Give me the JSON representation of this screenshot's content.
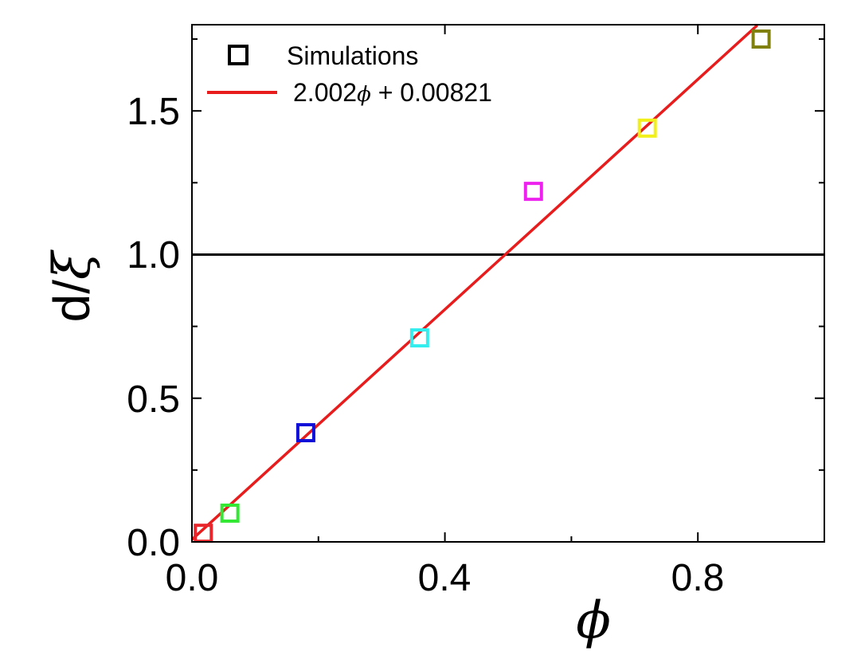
{
  "chart_data": {
    "type": "scatter",
    "xlabel": "ϕ",
    "ylabel": {
      "prefix": "d/",
      "symbol": "ξ"
    },
    "xlim": [
      0.0,
      1.0
    ],
    "ylim": [
      0.0,
      1.8
    ],
    "x_ticks": [
      {
        "value": 0.0,
        "label": "0.0"
      },
      {
        "value": 0.4,
        "label": "0.4"
      },
      {
        "value": 0.8,
        "label": "0.8"
      }
    ],
    "y_ticks": [
      {
        "value": 0.0,
        "label": "0.0"
      },
      {
        "value": 0.5,
        "label": "0.5"
      },
      {
        "value": 1.0,
        "label": "1.0"
      },
      {
        "value": 1.5,
        "label": "1.5"
      }
    ],
    "series": [
      {
        "name": "Simulations",
        "kind": "scatter",
        "marker": "open-square",
        "points": [
          {
            "x": 0.018,
            "y": 0.03,
            "color": "#e8262b"
          },
          {
            "x": 0.06,
            "y": 0.1,
            "color": "#33e833"
          },
          {
            "x": 0.18,
            "y": 0.38,
            "color": "#1010d8"
          },
          {
            "x": 0.36,
            "y": 0.71,
            "color": "#33eeee"
          },
          {
            "x": 0.54,
            "y": 1.22,
            "color": "#ee22ee"
          },
          {
            "x": 0.72,
            "y": 1.44,
            "color": "#f2f01a"
          },
          {
            "x": 0.9,
            "y": 1.75,
            "color": "#808010"
          }
        ]
      },
      {
        "name": "2.002ϕ + 0.00821",
        "name_parts": {
          "coef": "2.002",
          "symbol": "ϕ",
          "rest": " + 0.00821"
        },
        "kind": "line",
        "slope": 2.002,
        "intercept": 0.00821,
        "x_range": [
          0.0,
          0.894
        ],
        "color": "#e81c1c"
      }
    ],
    "reference_lines": [
      {
        "orientation": "horizontal",
        "y": 1.0,
        "color": "#000000"
      }
    ],
    "legend": {
      "placement": "top-left"
    },
    "grid": false
  }
}
